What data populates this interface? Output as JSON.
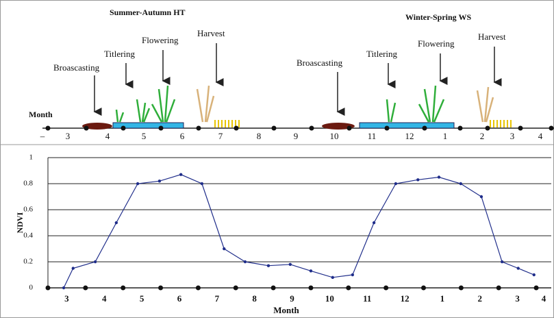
{
  "diagram": {
    "seasons": [
      "Summer-Autumn HT",
      "Winter-Spring WS"
    ],
    "stages": [
      [
        "Broascasting",
        "Titlering",
        "Flowering",
        "Harvest"
      ],
      [
        "Broascasting",
        "Titlering",
        "Flowering",
        "Harvest"
      ]
    ],
    "month_title": "Month",
    "months": [
      "–",
      "3",
      "4",
      "5",
      "6",
      "7",
      "8",
      "9",
      "10",
      "11",
      "12",
      "1",
      "2",
      "3",
      "4"
    ]
  },
  "chart_data": {
    "type": "line",
    "x_label": "Month",
    "y_label": "NDVI",
    "x": [
      0.42,
      0.67,
      1.26,
      1.82,
      2.39,
      2.97,
      3.54,
      4.1,
      4.69,
      5.25,
      5.87,
      6.45,
      7.0,
      7.58,
      8.11,
      8.68,
      9.26,
      9.85,
      10.41,
      10.99,
      11.54,
      12.09,
      12.52,
      12.94
    ],
    "values": [
      0,
      0.15,
      0.2,
      0.5,
      0.8,
      0.82,
      0.87,
      0.8,
      0.3,
      0.2,
      0.17,
      0.18,
      0.13,
      0.08,
      0.1,
      0.5,
      0.8,
      0.83,
      0.85,
      0.8,
      0.7,
      0.2,
      0.15,
      0.1
    ],
    "color": "#1f2d8a",
    "xlim": [
      0,
      13.4
    ],
    "xticks": [
      {
        "value": 0.5,
        "label": "3"
      },
      {
        "value": 1.5,
        "label": "4"
      },
      {
        "value": 2.5,
        "label": "5"
      },
      {
        "value": 3.5,
        "label": "6"
      },
      {
        "value": 4.5,
        "label": "7"
      },
      {
        "value": 5.5,
        "label": "8"
      },
      {
        "value": 6.5,
        "label": "9"
      },
      {
        "value": 7.5,
        "label": "10"
      },
      {
        "value": 8.5,
        "label": "11"
      },
      {
        "value": 9.5,
        "label": "12"
      },
      {
        "value": 10.5,
        "label": "1"
      },
      {
        "value": 11.5,
        "label": "2"
      },
      {
        "value": 12.5,
        "label": "3"
      },
      {
        "value": 13.2,
        "label": "4"
      }
    ],
    "ylim": [
      0,
      1
    ],
    "yticks": [
      0,
      0.2,
      0.4,
      0.6,
      0.8,
      1
    ],
    "grid": true
  }
}
